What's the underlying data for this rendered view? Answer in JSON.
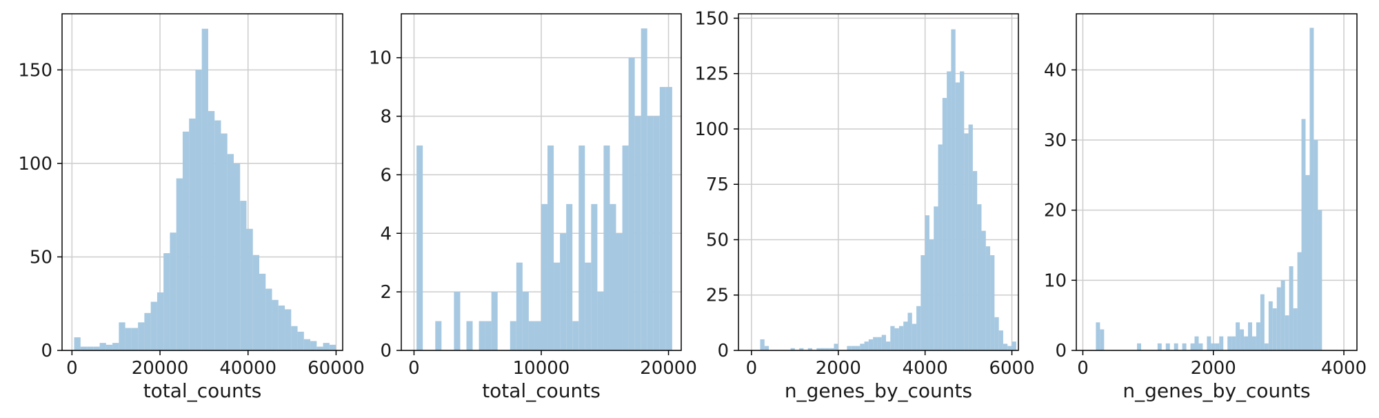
{
  "chart_data": [
    {
      "type": "bar",
      "xlabel": "total_counts",
      "ylabel": "",
      "xlim": [
        -2250,
        61500
      ],
      "ylim": [
        0,
        180
      ],
      "xticks": [
        0,
        20000,
        40000,
        60000
      ],
      "yticks": [
        0,
        50,
        100,
        150
      ],
      "grid": true,
      "bar_color": "#a6c8e1",
      "bin_start": 500,
      "bin_width": 1450,
      "values": [
        7,
        2,
        2,
        2,
        4,
        3,
        4,
        15,
        12,
        12,
        15,
        20,
        26,
        31,
        52,
        63,
        92,
        117,
        124,
        150,
        172,
        128,
        123,
        116,
        105,
        100,
        80,
        65,
        51,
        41,
        33,
        27,
        24,
        22,
        13,
        10,
        6,
        5,
        2,
        4,
        3
      ]
    },
    {
      "type": "bar",
      "xlabel": "total_counts",
      "ylabel": "",
      "xlim": [
        -1000,
        21000
      ],
      "ylim": [
        0,
        11.5
      ],
      "xticks": [
        0,
        10000,
        20000
      ],
      "yticks": [
        0,
        2,
        4,
        6,
        8,
        10
      ],
      "grid": true,
      "bar_color": "#a6c8e1",
      "bin_start": 200,
      "bin_width": 490,
      "values": [
        7,
        0,
        0,
        1,
        0,
        0,
        2,
        0,
        1,
        0,
        1,
        1,
        2,
        0,
        0,
        1,
        3,
        2,
        1,
        1,
        5,
        7,
        3,
        4,
        5,
        1,
        7,
        3,
        5,
        2,
        7,
        5,
        4,
        7,
        10,
        8,
        11,
        8,
        8,
        9,
        9
      ]
    },
    {
      "type": "bar",
      "xlabel": "n_genes_by_counts",
      "ylabel": "",
      "xlim": [
        -300,
        6150
      ],
      "ylim": [
        0,
        152
      ],
      "xticks": [
        0,
        2000,
        4000,
        6000
      ],
      "yticks": [
        0,
        25,
        50,
        75,
        100,
        125,
        150
      ],
      "grid": true,
      "bar_color": "#a6c8e1",
      "bin_start": 0,
      "bin_width": 100,
      "values": [
        0,
        0,
        5,
        2,
        0,
        0,
        0,
        0,
        0,
        1,
        0,
        1,
        0,
        1,
        0,
        1,
        1,
        1,
        1,
        3,
        0,
        0,
        2,
        2,
        2,
        3,
        4,
        5,
        6,
        6,
        7,
        4,
        11,
        10,
        11,
        13,
        17,
        12,
        20,
        43,
        61,
        50,
        65,
        93,
        114,
        126,
        145,
        121,
        126,
        98,
        102,
        81,
        66,
        54,
        47,
        43,
        15,
        9,
        3,
        2,
        4
      ]
    },
    {
      "type": "bar",
      "xlabel": "n_genes_by_counts",
      "ylabel": "",
      "xlim": [
        -100,
        4200
      ],
      "ylim": [
        0,
        48
      ],
      "xticks": [
        0,
        2000,
        4000
      ],
      "yticks": [
        0,
        10,
        20,
        30,
        40
      ],
      "grid": true,
      "bar_color": "#a6c8e1",
      "bin_start": 200,
      "bin_width": 63,
      "values": [
        4,
        3,
        0,
        0,
        0,
        0,
        0,
        0,
        0,
        0,
        1,
        0,
        0,
        0,
        0,
        1,
        0,
        1,
        0,
        1,
        0,
        1,
        0,
        1,
        2,
        1,
        0,
        2,
        1,
        1,
        2,
        0,
        2,
        2,
        4,
        3,
        2,
        4,
        2,
        4,
        8,
        1,
        7,
        6,
        9,
        10,
        5,
        12,
        6,
        14,
        33,
        25,
        46,
        30,
        20
      ]
    }
  ]
}
